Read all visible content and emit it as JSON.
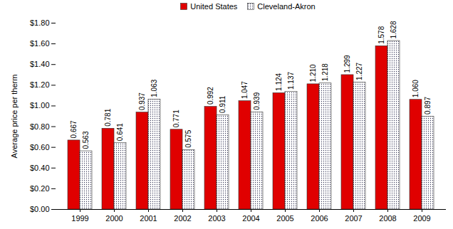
{
  "chart_data": {
    "type": "bar",
    "y_label": "Average price per therm",
    "categories": [
      "1999",
      "2000",
      "2001",
      "2002",
      "2003",
      "2004",
      "2005",
      "2006",
      "2007",
      "2008",
      "2009"
    ],
    "series": [
      {
        "name": "United States",
        "color": "#e00000",
        "values": [
          0.667,
          0.781,
          0.937,
          0.771,
          0.992,
          1.047,
          1.124,
          1.21,
          1.299,
          1.578,
          1.06
        ],
        "value_labels": [
          "0.667",
          "0.781",
          "0.937",
          "0.771",
          "0.992",
          "1.047",
          "1.124",
          "1.210",
          "1.299",
          "1.578",
          "1.060"
        ]
      },
      {
        "name": "Cleveland-Akron",
        "color": "#ffffff",
        "values": [
          0.563,
          0.641,
          1.063,
          0.575,
          0.911,
          0.939,
          1.137,
          1.218,
          1.227,
          1.628,
          0.897
        ],
        "value_labels": [
          "0.563",
          "0.641",
          "1.063",
          "0.575",
          "0.911",
          "0.939",
          "1.137",
          "1.218",
          "1.227",
          "1.628",
          "0.897"
        ]
      }
    ],
    "ylim": [
      0,
      1.8
    ],
    "yticks": [
      {
        "value": 0,
        "label": "$0.00"
      },
      {
        "value": 0.2,
        "label": "$0.20"
      },
      {
        "value": 0.4,
        "label": "$0.40"
      },
      {
        "value": 0.6,
        "label": "$0.60"
      },
      {
        "value": 0.8,
        "label": "$0.80"
      },
      {
        "value": 1,
        "label": "$1.00"
      },
      {
        "value": 1.2,
        "label": "$1.20"
      },
      {
        "value": 1.4,
        "label": "$1.40"
      },
      {
        "value": 1.6,
        "label": "$1.60"
      },
      {
        "value": 1.8,
        "label": "$1.80"
      }
    ],
    "grid": false,
    "legend": "top",
    "data_labels": true
  }
}
